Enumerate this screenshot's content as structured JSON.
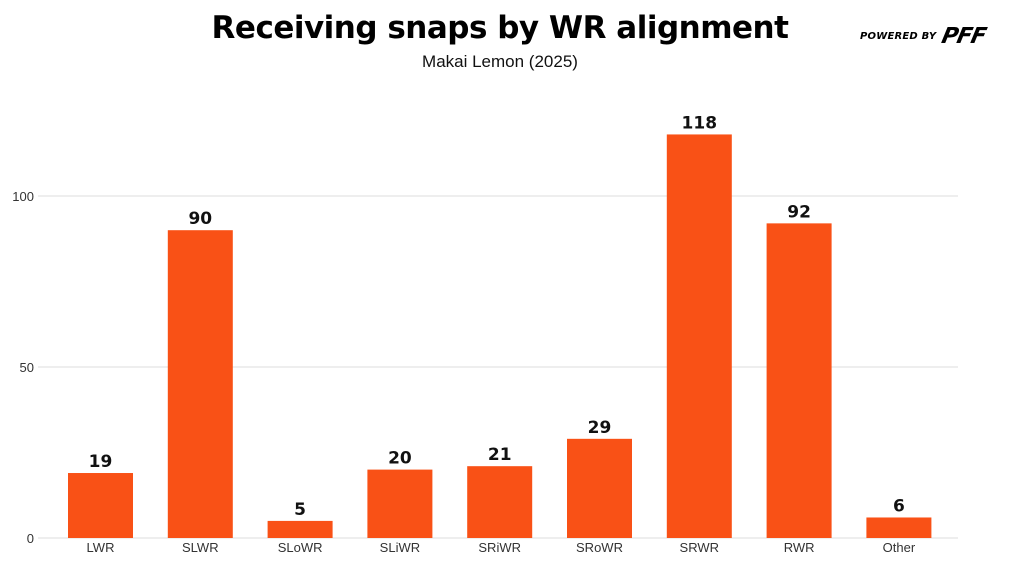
{
  "header": {
    "title": "Receiving snaps by WR alignment",
    "subtitle": "Makai Lemon (2025)",
    "brand_prefix": "POWERED BY",
    "brand_logo": "PFF"
  },
  "chart_data": {
    "type": "bar",
    "title": "Receiving snaps by WR alignment",
    "subtitle": "Makai Lemon (2025)",
    "xlabel": "",
    "ylabel": "",
    "categories": [
      "LWR",
      "SLWR",
      "SLoWR",
      "SLiWR",
      "SRiWR",
      "SRoWR",
      "SRWR",
      "RWR",
      "Other"
    ],
    "values": [
      19,
      90,
      5,
      20,
      21,
      29,
      118,
      92,
      6
    ],
    "ylim": [
      0,
      125
    ],
    "yticks": [
      0,
      50,
      100
    ],
    "grid": true,
    "legend": "none",
    "bar_color": "#F95116"
  }
}
